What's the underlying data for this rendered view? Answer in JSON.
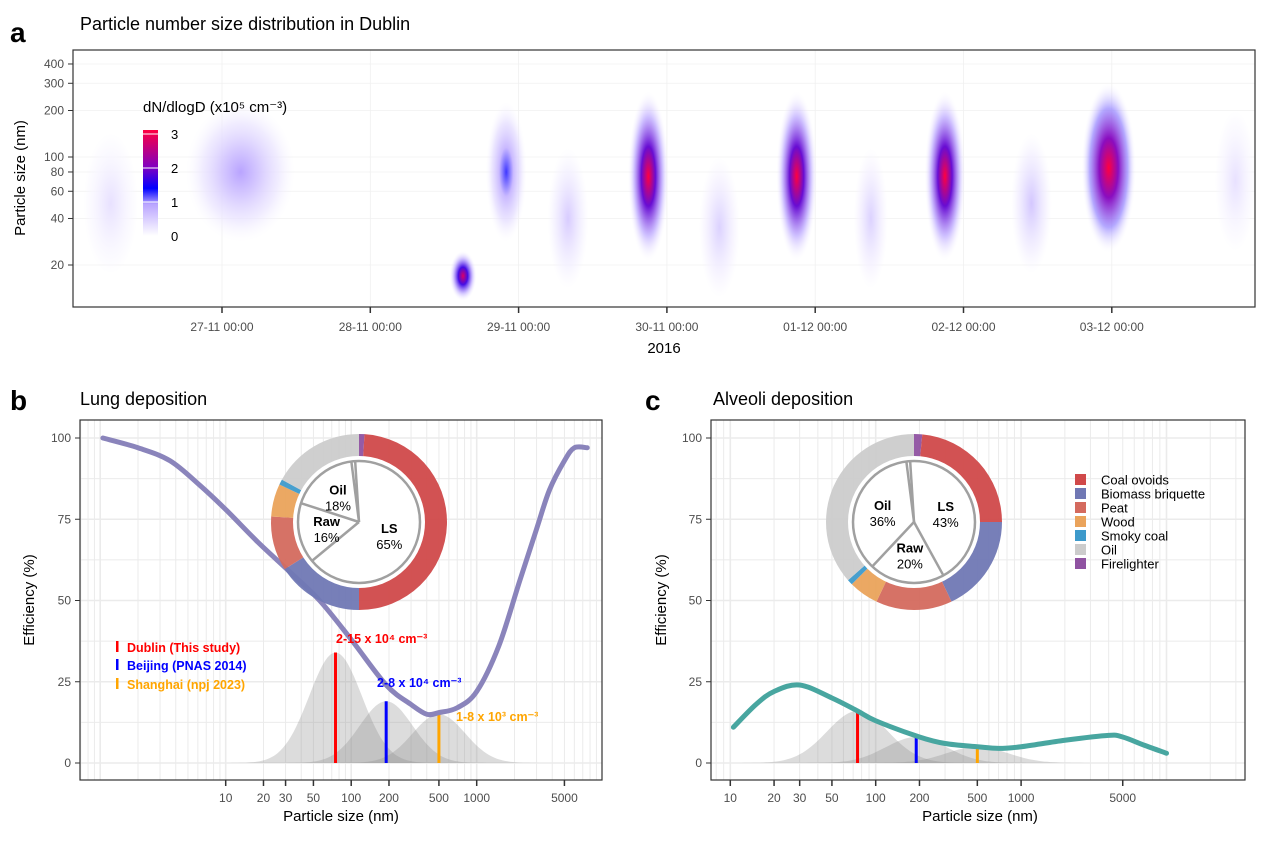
{
  "colors": {
    "coal_ovoids": "#d0494a",
    "biomass_briquette": "#7078b4",
    "peat": "#d46a5e",
    "wood": "#eaa35b",
    "smoky_coal": "#3d9acb",
    "oil": "#cccccc",
    "firelighter": "#8f52a1",
    "lung_curve": "#8a84bb",
    "alveoli_curve": "#48a6a0",
    "dublin": "#ff0000",
    "beijing": "#0000ff",
    "shanghai": "#ffa500"
  },
  "chart_data": [
    {
      "panel_label": "a",
      "type": "heatmap",
      "title": "Particle number size distribution in Dublin",
      "xlabel": "2016",
      "ylabel": "Particle size (nm)",
      "y_scale": "log",
      "ylim": [
        10.7,
        490
      ],
      "xlim": [
        "26-11 00:00",
        "03-12 23:00"
      ],
      "x_ticks": [
        "27-11 00:00",
        "28-11 00:00",
        "29-11 00:00",
        "30-11 00:00",
        "01-12 00:00",
        "02-12 00:00",
        "03-12 00:00"
      ],
      "y_ticks": [
        20,
        40,
        60,
        80,
        100,
        200,
        300,
        400
      ],
      "colorbar": {
        "title": "dN/dlogD (x10⁵ cm⁻³)",
        "ticks": [
          0,
          1,
          2,
          3
        ],
        "colors": [
          "#ffffff",
          "#b9a4ff",
          "#0000ff",
          "#8000c0",
          "#ff0040"
        ]
      },
      "grid": true,
      "events": [
        {
          "time": "26-11 06:00",
          "diameter_nm": 50,
          "peak": 0.3,
          "duration_h": 8
        },
        {
          "time": "27-11 03:00",
          "diameter_nm": 80,
          "peak": 0.9,
          "duration_h": 16
        },
        {
          "time": "28-11 15:00",
          "diameter_nm": 17,
          "peak": 2.7,
          "duration_h": 4
        },
        {
          "time": "28-11 22:00",
          "diameter_nm": 80,
          "peak": 1.2,
          "duration_h": 6
        },
        {
          "time": "29-11 08:00",
          "diameter_nm": 40,
          "peak": 0.5,
          "duration_h": 6
        },
        {
          "time": "29-11 21:00",
          "diameter_nm": 75,
          "peak": 3.0,
          "duration_h": 6
        },
        {
          "time": "30-11 08:30",
          "diameter_nm": 35,
          "peak": 0.45,
          "duration_h": 6
        },
        {
          "time": "30-11 21:00",
          "diameter_nm": 75,
          "peak": 3.0,
          "duration_h": 6
        },
        {
          "time": "01-12 09:00",
          "diameter_nm": 40,
          "peak": 0.45,
          "duration_h": 5
        },
        {
          "time": "01-12 21:00",
          "diameter_nm": 75,
          "peak": 3.0,
          "duration_h": 6
        },
        {
          "time": "02-12 11:00",
          "diameter_nm": 50,
          "peak": 0.55,
          "duration_h": 6
        },
        {
          "time": "02-12 23:30",
          "diameter_nm": 85,
          "peak": 3.3,
          "duration_h": 8
        },
        {
          "time": "03-12 20:00",
          "diameter_nm": 70,
          "peak": 0.3,
          "duration_h": 6
        }
      ]
    },
    {
      "panel_label": "b",
      "type": "line",
      "title": "Lung deposition",
      "xlabel": "Particle size (nm)",
      "ylabel": "Efficiency (%)",
      "x_scale": "log",
      "x_ticks": [
        10,
        20,
        30,
        50,
        100,
        200,
        500,
        1000,
        5000
      ],
      "y_ticks": [
        0,
        25,
        50,
        75,
        100
      ],
      "curve": {
        "x": [
          1.05,
          2,
          3.6,
          6.2,
          10,
          18,
          32,
          56,
          100,
          190,
          300,
          400,
          500,
          700,
          1000,
          1500,
          2200,
          3000,
          3800,
          5000,
          6000,
          7600
        ],
        "y": [
          100,
          97,
          93,
          85.5,
          78,
          68,
          59,
          50,
          38,
          24,
          18,
          15,
          15.5,
          17,
          22,
          36,
          56,
          72,
          84,
          93,
          97,
          97
        ]
      },
      "modes": [
        {
          "name": "Dublin (This study)",
          "center_nm": 75,
          "peak": 34,
          "label": "2-15 x 10⁴ cm⁻³"
        },
        {
          "name": "Beijing (PNAS 2014)",
          "center_nm": 190,
          "peak": 19,
          "label": "2-8 x 10⁴ cm⁻³"
        },
        {
          "name": "Shanghai (npj 2023)",
          "center_nm": 500,
          "peak": 15,
          "label": "1-8 x 10³ cm⁻³"
        }
      ],
      "donut": {
        "outer": [
          {
            "name": "Firelighter",
            "value": 1
          },
          {
            "name": "Coal ovoids",
            "value": 49
          },
          {
            "name": "Biomass briquette",
            "value": 16
          },
          {
            "name": "Peat",
            "value": 10
          },
          {
            "name": "Wood",
            "value": 6
          },
          {
            "name": "Smoky coal",
            "value": 1
          },
          {
            "name": "Oil",
            "value": 17
          }
        ],
        "inner": [
          {
            "name": "LS",
            "value": 65,
            "label": "65%"
          },
          {
            "name": "Raw",
            "value": 16,
            "label": "16%"
          },
          {
            "name": "Oil",
            "value": 18,
            "label": "18%"
          },
          {
            "name": "",
            "value": 1,
            "label": ""
          }
        ]
      }
    },
    {
      "panel_label": "c",
      "type": "line",
      "title": "Alveoli deposition",
      "xlabel": "Particle size (nm)",
      "ylabel": "Efficiency (%)",
      "x_scale": "log",
      "x_ticks": [
        10,
        20,
        30,
        50,
        100,
        200,
        500,
        1000,
        5000
      ],
      "y_ticks": [
        0,
        25,
        50,
        75,
        100
      ],
      "curve": {
        "x": [
          10.5,
          15,
          20,
          30,
          50,
          75,
          100,
          200,
          300,
          500,
          700,
          1000,
          2000,
          4000,
          5000,
          7000,
          10000
        ],
        "y": [
          11,
          18,
          22,
          24,
          20,
          16,
          13,
          8,
          6,
          5,
          4.5,
          5,
          7,
          8.5,
          8,
          5.5,
          3
        ]
      },
      "modes": [
        {
          "name": "Dublin (This study)",
          "center_nm": 75,
          "peak": 16
        },
        {
          "name": "Beijing (PNAS 2014)",
          "center_nm": 190,
          "peak": 8
        },
        {
          "name": "Shanghai (npj 2023)",
          "center_nm": 500,
          "peak": 5
        }
      ],
      "donut": {
        "outer": [
          {
            "name": "Firelighter",
            "value": 1.5
          },
          {
            "name": "Coal ovoids",
            "value": 23.5
          },
          {
            "name": "Biomass briquette",
            "value": 18
          },
          {
            "name": "Peat",
            "value": 14
          },
          {
            "name": "Wood",
            "value": 5.5
          },
          {
            "name": "Smoky coal",
            "value": 1
          },
          {
            "name": "Oil",
            "value": 36.5
          }
        ],
        "inner": [
          {
            "name": "LS",
            "value": 43,
            "label": "43%"
          },
          {
            "name": "Raw",
            "value": 20,
            "label": "20%"
          },
          {
            "name": "Oil",
            "value": 36,
            "label": "36%"
          },
          {
            "name": "",
            "value": 1,
            "label": ""
          }
        ]
      },
      "legend": [
        "Coal ovoids",
        "Biomass briquette",
        "Peat",
        "Wood",
        "Smoky coal",
        "Oil",
        "Firelighter"
      ]
    }
  ]
}
